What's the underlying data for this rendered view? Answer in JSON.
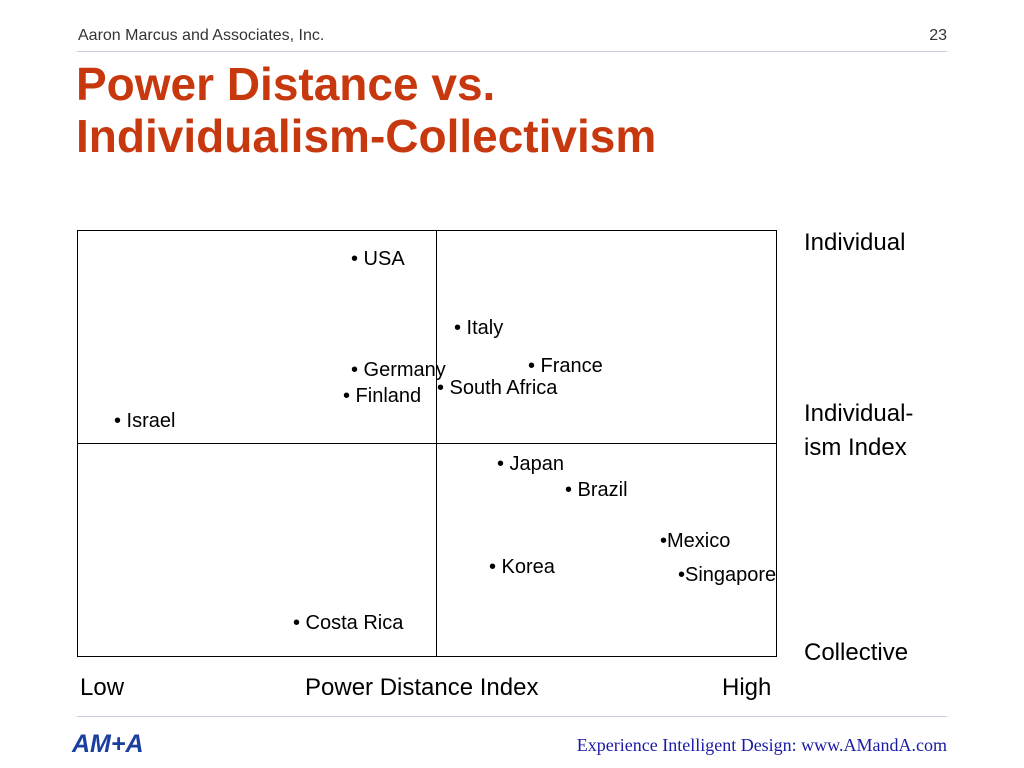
{
  "header": {
    "company": "Aaron Marcus and Associates, Inc.",
    "page_number": "23"
  },
  "title": {
    "line1": "Power Distance vs.",
    "line2": "Individualism-Collectivism"
  },
  "axes": {
    "y_top": "Individual",
    "y_mid_line1": "Individual-",
    "y_mid_line2": "ism Index",
    "y_bottom": "Collective",
    "x_low": "Low",
    "x_mid": "Power Distance Index",
    "x_high": "High"
  },
  "points": [
    {
      "label": "• USA"
    },
    {
      "label": "• Italy"
    },
    {
      "label": "• Germany"
    },
    {
      "label": "• France"
    },
    {
      "label": "• South Africa"
    },
    {
      "label": "• Finland"
    },
    {
      "label": "• Israel"
    },
    {
      "label": "• Japan"
    },
    {
      "label": "• Brazil"
    },
    {
      "label": "•Mexico"
    },
    {
      "label": "• Korea"
    },
    {
      "label": "•Singapore"
    },
    {
      "label": "• Costa Rica"
    }
  ],
  "footer": {
    "logo": "AM+A",
    "link": "Experience Intelligent Design: www.AMandA.com"
  },
  "colors": {
    "title": "#c8380e",
    "logo": "#1a3fa0",
    "link": "#1a1aa6"
  }
}
